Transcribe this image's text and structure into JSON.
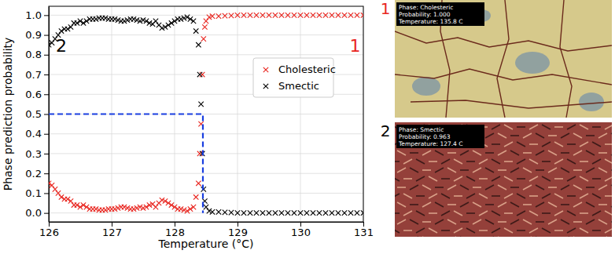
{
  "chart_data": {
    "type": "scatter",
    "x_label": "Temperature (°C)",
    "y_label": "Phase prediction probability",
    "marker": "x",
    "grid": true,
    "legend": "center right",
    "xlim": [
      126,
      131
    ],
    "ylim": [
      -0.045,
      1.045
    ],
    "xticks": [
      126,
      127,
      128,
      129,
      130,
      131
    ],
    "yticks": [
      {
        "value": 0,
        "label": "0.0"
      },
      0.1,
      0.2,
      0.3,
      0.4,
      0.5,
      0.6,
      0.7,
      0.8,
      0.9,
      {
        "value": 1,
        "label": "1.0"
      }
    ],
    "x": [
      126.0,
      126.05,
      126.1,
      126.15,
      126.2,
      126.25,
      126.3,
      126.35,
      126.4,
      126.45,
      126.5,
      126.55,
      126.6,
      126.65,
      126.7,
      126.75,
      126.8,
      126.85,
      126.9,
      126.95,
      127.0,
      127.05,
      127.1,
      127.15,
      127.2,
      127.25,
      127.3,
      127.35,
      127.4,
      127.45,
      127.5,
      127.55,
      127.6,
      127.65,
      127.7,
      127.75,
      127.8,
      127.85,
      127.9,
      127.95,
      128.0,
      128.05,
      128.1,
      128.15,
      128.2,
      128.25,
      128.3,
      128.34,
      128.38,
      128.4,
      128.42,
      128.44,
      128.46,
      128.48,
      128.5,
      128.55,
      128.6,
      128.7,
      128.8,
      128.9,
      129.0,
      129.1,
      129.2,
      129.3,
      129.4,
      129.5,
      129.6,
      129.7,
      129.8,
      129.9,
      130.0,
      130.1,
      130.2,
      130.3,
      130.4,
      130.5,
      130.6,
      130.7,
      130.8,
      130.9,
      131.0
    ],
    "series": [
      {
        "name": "Cholesteric",
        "color": "#e8251f",
        "values": [
          0.15,
          0.14,
          0.12,
          0.1,
          0.08,
          0.07,
          0.07,
          0.06,
          0.04,
          0.04,
          0.03,
          0.04,
          0.03,
          0.02,
          0.02,
          0.02,
          0.015,
          0.015,
          0.015,
          0.02,
          0.02,
          0.02,
          0.025,
          0.03,
          0.03,
          0.025,
          0.02,
          0.02,
          0.025,
          0.03,
          0.025,
          0.03,
          0.04,
          0.045,
          0.03,
          0.05,
          0.065,
          0.06,
          0.05,
          0.04,
          0.03,
          0.02,
          0.02,
          0.015,
          0.01,
          0.02,
          0.03,
          0.08,
          0.15,
          0.3,
          0.45,
          0.7,
          0.88,
          0.94,
          0.97,
          0.99,
          0.995,
          0.995,
          0.997,
          0.998,
          1.0,
          1.0,
          1.0,
          1.0,
          1.0,
          1.0,
          1.0,
          1.0,
          1.0,
          1.0,
          1.0,
          1.0,
          1.0,
          1.0,
          1.0,
          1.0,
          1.0,
          1.0,
          1.0,
          1.0,
          1.0
        ]
      },
      {
        "name": "Smectic",
        "color": "#000000",
        "values": [
          0.85,
          0.86,
          0.88,
          0.9,
          0.92,
          0.93,
          0.93,
          0.94,
          0.96,
          0.96,
          0.97,
          0.96,
          0.97,
          0.98,
          0.98,
          0.98,
          0.985,
          0.985,
          0.985,
          0.98,
          0.98,
          0.98,
          0.975,
          0.97,
          0.97,
          0.975,
          0.98,
          0.98,
          0.975,
          0.97,
          0.975,
          0.97,
          0.96,
          0.955,
          0.97,
          0.95,
          0.935,
          0.94,
          0.95,
          0.96,
          0.97,
          0.98,
          0.98,
          0.985,
          0.99,
          0.98,
          0.97,
          0.92,
          0.85,
          0.7,
          0.55,
          0.3,
          0.12,
          0.06,
          0.03,
          0.01,
          0.005,
          0.005,
          0.003,
          0.002,
          0.0,
          0.0,
          0.0,
          0.0,
          0.0,
          0.0,
          0.0,
          0.0,
          0.0,
          0.0,
          0.0,
          0.0,
          0.0,
          0.0,
          0.0,
          0.0,
          0.0,
          0.0,
          0.0,
          0.0,
          0.0
        ]
      }
    ],
    "reference_line": {
      "x": [
        126,
        128.45,
        128.45
      ],
      "y": [
        0.5,
        0.5,
        0
      ],
      "color": "#1a3fe0",
      "line_style": "dashed"
    },
    "annotations": [
      {
        "text": "2",
        "x": 126.2,
        "y": 0.84,
        "color": "#000000"
      },
      {
        "text": "1",
        "x": 130.87,
        "y": 0.84,
        "color": "#e8251f"
      }
    ]
  },
  "images": [
    {
      "label": "1",
      "label_color": "#e8251f",
      "caption": [
        "Phase: Cholesteric",
        "Probability: 1.000",
        "Temperature: 135.8 C"
      ]
    },
    {
      "label": "2",
      "label_color": "#000000",
      "caption": [
        "Phase: Smectic",
        "Probability: 0.963",
        "Temperature: 127.4 C"
      ]
    }
  ]
}
